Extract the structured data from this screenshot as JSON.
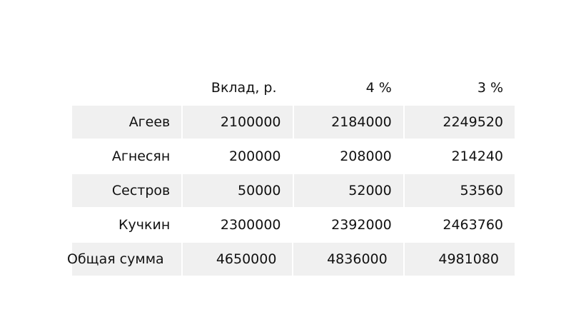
{
  "table": {
    "headers": [
      "",
      "Вклад, р.",
      "4 %",
      "3 %"
    ],
    "rows": [
      {
        "name": "Агеев",
        "deposit": "2100000",
        "p4": "2184000",
        "p3": "2249520"
      },
      {
        "name": "Агнесян",
        "deposit": "200000",
        "p4": "208000",
        "p3": "214240"
      },
      {
        "name": "Сестров",
        "deposit": "50000",
        "p4": "52000",
        "p3": "53560"
      },
      {
        "name": "Кучкин",
        "deposit": "2300000",
        "p4": "2392000",
        "p3": "2463760"
      }
    ],
    "total": {
      "name": "Общая сумма",
      "deposit": "4650000",
      "p4": "4836000",
      "p3": "4981080"
    }
  },
  "colors": {
    "row_shade": "#f0f0f0",
    "text": "#111111"
  }
}
